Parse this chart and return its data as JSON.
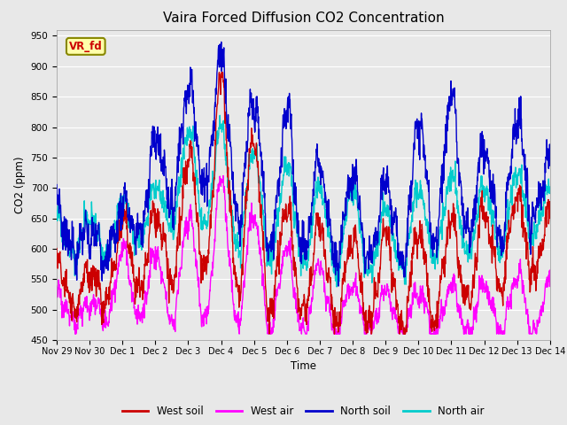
{
  "title": "Vaira Forced Diffusion CO2 Concentration",
  "xlabel": "Time",
  "ylabel": "CO2 (ppm)",
  "ylim": [
    450,
    960
  ],
  "yticks": [
    450,
    500,
    550,
    600,
    650,
    700,
    750,
    800,
    850,
    900,
    950
  ],
  "xtick_labels": [
    "Nov 29",
    "Nov 30",
    "Dec 1",
    "Dec 2",
    "Dec 3",
    "Dec 4",
    "Dec 5",
    "Dec 6",
    "Dec 7",
    "Dec 8",
    "Dec 9",
    "Dec 10",
    "Dec 11",
    "Dec 12",
    "Dec 13",
    "Dec 14"
  ],
  "legend_labels": [
    "West soil",
    "West air",
    "North soil",
    "North air"
  ],
  "colors": {
    "west_soil": "#cc0000",
    "west_air": "#ff00ff",
    "north_soil": "#0000cc",
    "north_air": "#00cccc"
  },
  "label_box": {
    "text": "VR_fd",
    "facecolor": "#ffffaa",
    "edgecolor": "#888800",
    "textcolor": "#cc0000"
  },
  "plot_bg_color": "#e8e8e8",
  "linewidth": 1.0,
  "n_points": 1500,
  "days": 15.0
}
